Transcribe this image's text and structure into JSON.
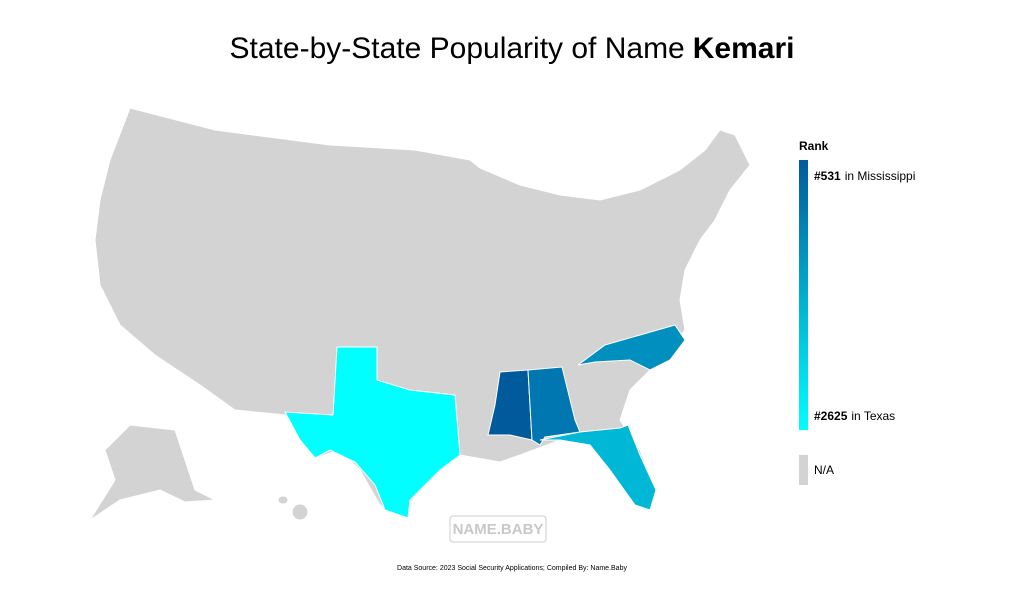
{
  "title": {
    "text": "State-by-State Popularity of Name",
    "name": "Kemari"
  },
  "legend": {
    "title": "Rank",
    "max": {
      "rank": "#531",
      "place": "in Mississippi"
    },
    "min": {
      "rank": "#2625",
      "place": "in Texas"
    },
    "na": "N/A",
    "colors": [
      "#005a9c",
      "#00ffff"
    ],
    "na_color": "#d3d3d3"
  },
  "watermark": "NAME.BABY",
  "source": "Data Source: 2023 Social Security Applications; Compiled By: Name.Baby"
}
